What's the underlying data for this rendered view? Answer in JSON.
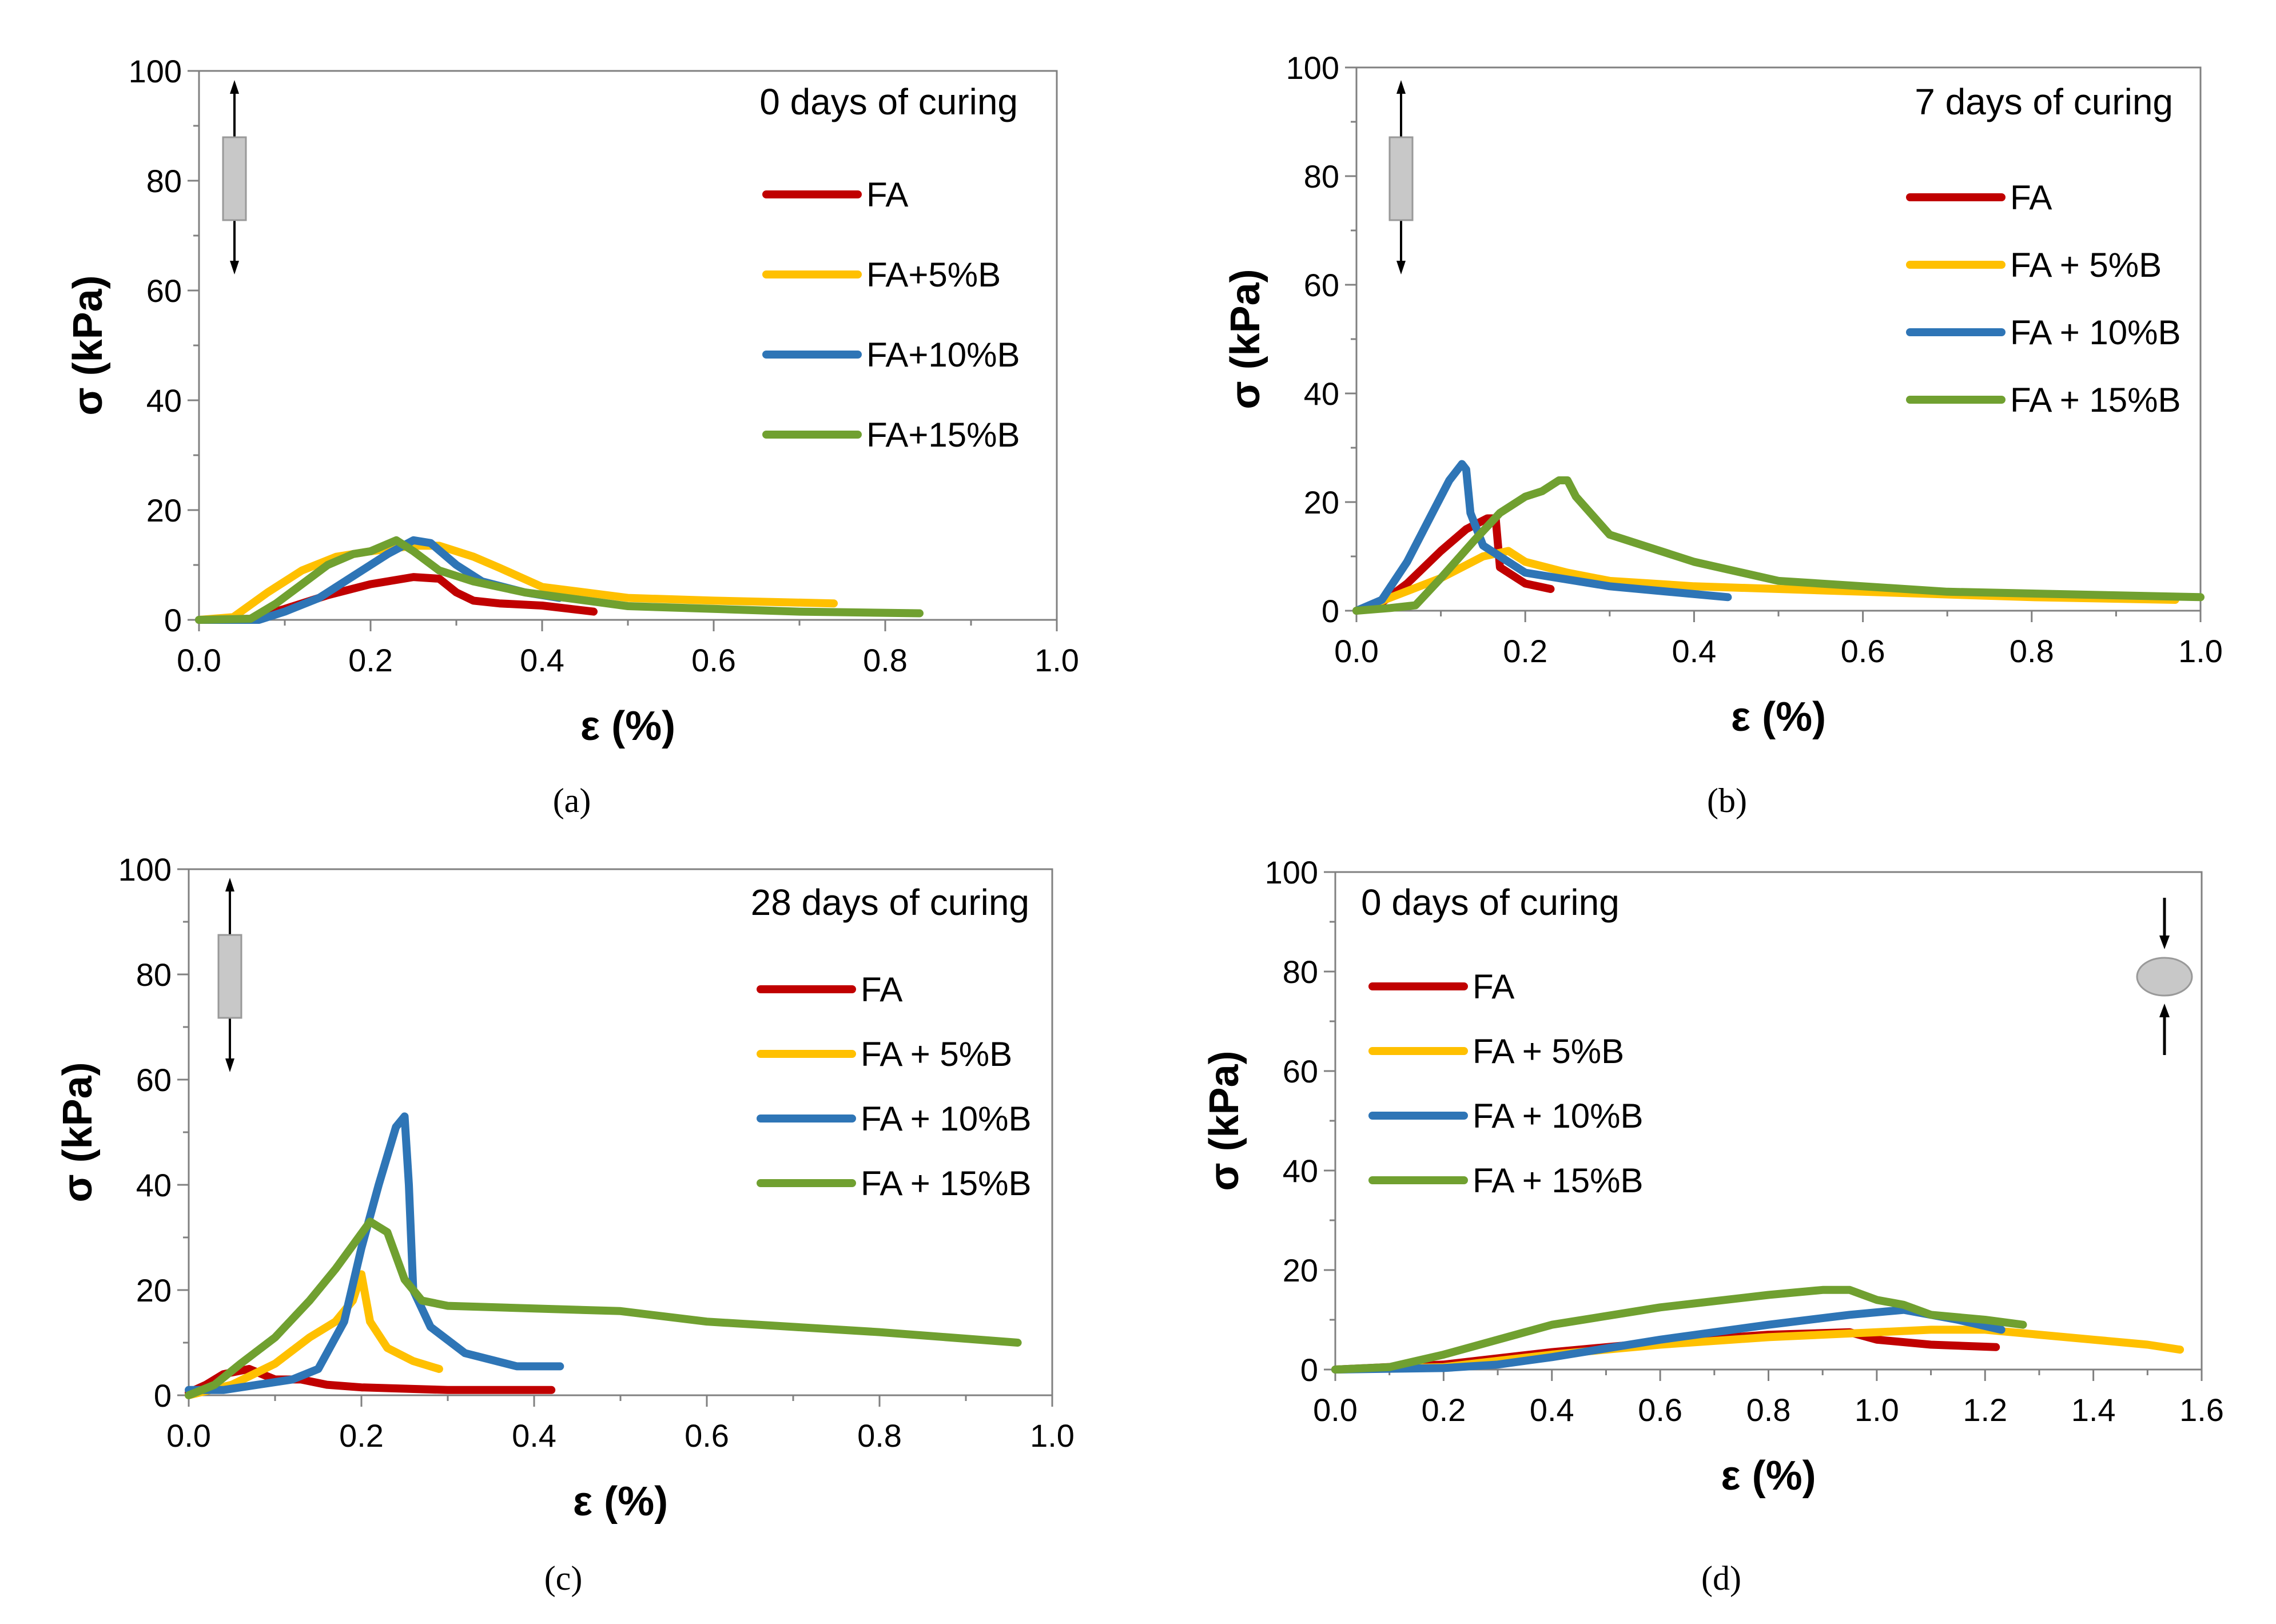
{
  "colors": {
    "FA": "#c00000",
    "FA5": "#ffc000",
    "FA10": "#2e75b6",
    "FA15": "#70a030",
    "axis": "#808080",
    "specimen": "#c8c8c8"
  },
  "chart_data": [
    {
      "id": "a",
      "type": "line",
      "caption": "(a)",
      "title": "0 days of curing",
      "xlabel": "ε (%)",
      "ylabel": "σ (kPa)",
      "xlim": [
        0,
        1.0
      ],
      "ylim": [
        0,
        100
      ],
      "xticks": [
        "0.0",
        "0.2",
        "0.4",
        "0.6",
        "0.8",
        "1.0"
      ],
      "yticks": [
        "0",
        "20",
        "40",
        "60",
        "80",
        "100"
      ],
      "specimen_icon": "tension-bar-icon",
      "series": [
        {
          "name": "FA",
          "color_key": "FA",
          "x": [
            0,
            0.06,
            0.1,
            0.15,
            0.2,
            0.25,
            0.28,
            0.3,
            0.32,
            0.35,
            0.4,
            0.46
          ],
          "y": [
            0,
            0.2,
            2,
            4.5,
            6.5,
            7.8,
            7.5,
            5,
            3.5,
            3,
            2.6,
            1.5
          ]
        },
        {
          "name": "FA+5%B",
          "color_key": "FA5",
          "x": [
            0,
            0.04,
            0.08,
            0.12,
            0.16,
            0.2,
            0.25,
            0.28,
            0.32,
            0.35,
            0.4,
            0.5,
            0.6,
            0.74
          ],
          "y": [
            0,
            0.5,
            5,
            9,
            11.5,
            12.5,
            13.5,
            13.5,
            11.5,
            9.5,
            6,
            4,
            3.5,
            3
          ]
        },
        {
          "name": "FA+10%B",
          "color_key": "FA10",
          "x": [
            0,
            0.07,
            0.1,
            0.14,
            0.18,
            0.22,
            0.25,
            0.27,
            0.3,
            0.33,
            0.38,
            0.42
          ],
          "y": [
            0,
            0,
            1.5,
            4,
            8,
            12,
            14.5,
            14,
            10,
            7,
            5,
            4
          ]
        },
        {
          "name": "FA+15%B",
          "color_key": "FA15",
          "x": [
            0,
            0.06,
            0.09,
            0.12,
            0.15,
            0.18,
            0.2,
            0.23,
            0.25,
            0.28,
            0.32,
            0.38,
            0.5,
            0.7,
            0.84
          ],
          "y": [
            0,
            0.2,
            3,
            6.5,
            10,
            12,
            12.5,
            14.5,
            12.5,
            9,
            7,
            5,
            2.5,
            1.5,
            1.2
          ]
        }
      ]
    },
    {
      "id": "b",
      "type": "line",
      "caption": "(b)",
      "title": "7 days of curing",
      "xlabel": "ε (%)",
      "ylabel": "σ (kPa)",
      "xlim": [
        0,
        1.0
      ],
      "ylim": [
        0,
        100
      ],
      "xticks": [
        "0.0",
        "0.2",
        "0.4",
        "0.6",
        "0.8",
        "1.0"
      ],
      "yticks": [
        "0",
        "20",
        "40",
        "60",
        "80",
        "100"
      ],
      "specimen_icon": "tension-bar-icon",
      "series": [
        {
          "name": "FA",
          "color_key": "FA",
          "x": [
            0,
            0.03,
            0.06,
            0.1,
            0.13,
            0.155,
            0.165,
            0.17,
            0.2,
            0.23
          ],
          "y": [
            0,
            1.5,
            5,
            11,
            15,
            17,
            17,
            8,
            5,
            4
          ]
        },
        {
          "name": "FA + 5%B",
          "color_key": "FA5",
          "x": [
            0,
            0.05,
            0.1,
            0.15,
            0.18,
            0.2,
            0.25,
            0.3,
            0.4,
            0.6,
            0.8,
            0.97
          ],
          "y": [
            0,
            3,
            6,
            10,
            11,
            9,
            7,
            5.5,
            4.5,
            3.5,
            2.5,
            2
          ]
        },
        {
          "name": "FA + 10%B",
          "color_key": "FA10",
          "x": [
            0,
            0.03,
            0.06,
            0.09,
            0.11,
            0.125,
            0.13,
            0.135,
            0.15,
            0.2,
            0.3,
            0.44
          ],
          "y": [
            0,
            2,
            9,
            18,
            24,
            27,
            26,
            18,
            12,
            7,
            4.5,
            2.5
          ]
        },
        {
          "name": "FA + 15%B",
          "color_key": "FA15",
          "x": [
            0,
            0.04,
            0.07,
            0.1,
            0.14,
            0.17,
            0.2,
            0.22,
            0.24,
            0.25,
            0.26,
            0.3,
            0.4,
            0.5,
            0.7,
            1.0
          ],
          "y": [
            0,
            0.5,
            1,
            6,
            13,
            18,
            21,
            22,
            24,
            24,
            21,
            14,
            9,
            5.5,
            3.5,
            2.5
          ]
        }
      ]
    },
    {
      "id": "c",
      "type": "line",
      "caption": "(c)",
      "title": "28 days of curing",
      "xlabel": "ε (%)",
      "ylabel": "σ (kPa)",
      "xlim": [
        0,
        1.0
      ],
      "ylim": [
        0,
        100
      ],
      "xticks": [
        "0.0",
        "0.2",
        "0.4",
        "0.6",
        "0.8",
        "1.0"
      ],
      "yticks": [
        "0",
        "20",
        "40",
        "60",
        "80",
        "100"
      ],
      "specimen_icon": "tension-bar-icon",
      "series": [
        {
          "name": "FA",
          "color_key": "FA",
          "x": [
            0,
            0.02,
            0.04,
            0.07,
            0.1,
            0.13,
            0.16,
            0.2,
            0.3,
            0.42
          ],
          "y": [
            0.5,
            2,
            4,
            5,
            3,
            3,
            2,
            1.5,
            1,
            1
          ]
        },
        {
          "name": "FA + 5%B",
          "color_key": "FA5",
          "x": [
            0,
            0.05,
            0.1,
            0.14,
            0.17,
            0.19,
            0.2,
            0.21,
            0.23,
            0.26,
            0.29
          ],
          "y": [
            0,
            2,
            6,
            11,
            14,
            18,
            23,
            14,
            9,
            6.5,
            5
          ]
        },
        {
          "name": "FA + 10%B",
          "color_key": "FA10",
          "x": [
            0,
            0.04,
            0.08,
            0.12,
            0.15,
            0.18,
            0.2,
            0.22,
            0.24,
            0.25,
            0.255,
            0.26,
            0.28,
            0.32,
            0.38,
            0.43
          ],
          "y": [
            1,
            1,
            2,
            3,
            5,
            14,
            28,
            40,
            51,
            53,
            40,
            20,
            13,
            8,
            5.5,
            5.5
          ]
        },
        {
          "name": "FA + 15%B",
          "color_key": "FA15",
          "x": [
            0,
            0.03,
            0.06,
            0.1,
            0.14,
            0.17,
            0.21,
            0.23,
            0.25,
            0.27,
            0.3,
            0.4,
            0.5,
            0.6,
            0.7,
            0.8,
            0.96
          ],
          "y": [
            0,
            2,
            6,
            11,
            18,
            24,
            33,
            31,
            22,
            18,
            17,
            16.5,
            16,
            14,
            13,
            12,
            10
          ]
        }
      ]
    },
    {
      "id": "d",
      "type": "line",
      "caption": "(d)",
      "title": "0 days of curing",
      "xlabel": "ε (%)",
      "ylabel": "σ (kPa)",
      "xlim": [
        0,
        1.6
      ],
      "ylim": [
        0,
        100
      ],
      "xticks": [
        "0.0",
        "0.2",
        "0.4",
        "0.6",
        "0.8",
        "1.0",
        "1.2",
        "1.4",
        "1.6"
      ],
      "yticks": [
        "0",
        "20",
        "40",
        "60",
        "80",
        "100"
      ],
      "specimen_icon": "compression-disc-icon",
      "series": [
        {
          "name": "FA",
          "color_key": "FA",
          "x": [
            0,
            0.2,
            0.4,
            0.6,
            0.8,
            0.95,
            1.0,
            1.1,
            1.22
          ],
          "y": [
            0,
            1,
            3.5,
            5.5,
            7,
            7.5,
            6,
            5,
            4.5
          ]
        },
        {
          "name": "FA + 5%B",
          "color_key": "FA5",
          "x": [
            0,
            0.2,
            0.4,
            0.6,
            0.8,
            1.0,
            1.1,
            1.2,
            1.3,
            1.4,
            1.5,
            1.56
          ],
          "y": [
            0,
            0.5,
            3,
            5,
            6.5,
            7.5,
            8,
            8,
            7,
            6,
            5,
            4
          ]
        },
        {
          "name": "FA + 10%B",
          "color_key": "FA10",
          "x": [
            0,
            0.2,
            0.3,
            0.4,
            0.6,
            0.8,
            0.95,
            1.05,
            1.15,
            1.23
          ],
          "y": [
            0,
            0.3,
            1,
            2.5,
            6,
            9,
            11,
            12,
            10,
            8
          ]
        },
        {
          "name": "FA + 15%B",
          "color_key": "FA15",
          "x": [
            0,
            0.1,
            0.2,
            0.4,
            0.6,
            0.8,
            0.9,
            0.95,
            1.0,
            1.05,
            1.1,
            1.2,
            1.27
          ],
          "y": [
            0,
            0.5,
            3,
            9,
            12.5,
            15,
            16,
            16,
            14,
            13,
            11,
            10,
            9
          ]
        }
      ]
    }
  ]
}
